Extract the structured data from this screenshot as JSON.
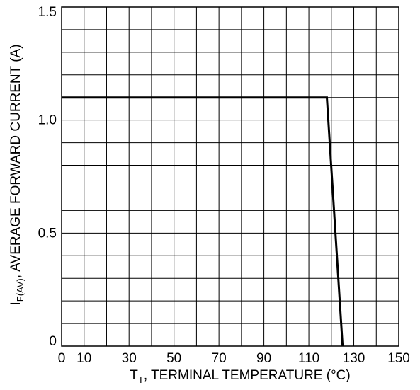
{
  "chart_data": {
    "type": "line",
    "xlabel": {
      "main": "T",
      "sub": "T",
      "rest": ", TERMINAL TEMPERATURE (°C)"
    },
    "ylabel": {
      "main": "I",
      "sub": "F(AV)",
      "rest": ", AVERAGE FORWARD CURRENT (A)"
    },
    "xlim": [
      0,
      150
    ],
    "ylim": [
      0,
      1.5
    ],
    "x_ticks": [
      0,
      10,
      30,
      50,
      70,
      90,
      110,
      130,
      150
    ],
    "y_ticks": [
      0,
      0.5,
      1.0,
      1.5
    ],
    "x_tick_labels": [
      "0",
      "10",
      "30",
      "50",
      "70",
      "90",
      "110",
      "130",
      "150"
    ],
    "y_tick_labels": [
      "0",
      "0.5",
      "1.0",
      "1.5"
    ],
    "x_grid_step": 10,
    "y_grid_step": 0.1,
    "grid": true,
    "series": [
      {
        "x": [
          0,
          118,
          125
        ],
        "y": [
          1.1,
          1.1,
          0
        ]
      }
    ],
    "colors": {
      "line": "#000000",
      "grid": "#000000",
      "frame": "#000000"
    }
  }
}
